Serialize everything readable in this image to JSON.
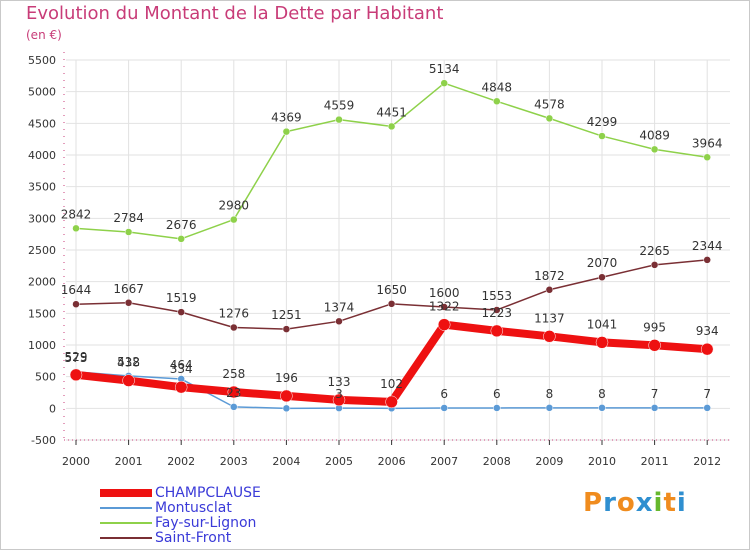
{
  "title": "Evolution du Montant de la Dette par Habitant",
  "subtitle": "(en €)",
  "logo": {
    "text": "Proxiti",
    "letters": [
      "P",
      "r",
      "o",
      "x",
      "i",
      "t",
      "i"
    ],
    "colors": [
      "#f08c1e",
      "#2f8fd0",
      "#f08c1e",
      "#2f8fd0",
      "#66b82d",
      "#f08c1e",
      "#2f8fd0"
    ]
  },
  "chart_data": {
    "type": "line",
    "title": "Evolution du Montant de la Dette par Habitant",
    "subtitle": "(en €)",
    "x": [
      "2000",
      "2001",
      "2002",
      "2003",
      "2004",
      "2005",
      "2006",
      "2007",
      "2008",
      "2009",
      "2010",
      "2011",
      "2012"
    ],
    "ylim": [
      -500,
      5500
    ],
    "yticks": [
      -500,
      0,
      500,
      1000,
      1500,
      2000,
      2500,
      3000,
      3500,
      4000,
      4500,
      5000,
      5500
    ],
    "grid": true,
    "legend_position": "bottom-left",
    "series": [
      {
        "name": "CHAMPCLAUSE",
        "color": "#ee1111",
        "values": [
          529,
          438,
          334,
          258,
          196,
          133,
          102,
          1322,
          1223,
          1137,
          1041,
          995,
          934
        ],
        "labels": [
          "529",
          "438",
          "334",
          "258",
          "196",
          "133",
          "102",
          "1322",
          "1223",
          "1137",
          "1041",
          "995",
          "934"
        ]
      },
      {
        "name": "Montusclat",
        "color": "#5b9ad6",
        "values": [
          575,
          512,
          464,
          23,
          0,
          3,
          0,
          6,
          6,
          8,
          8,
          7,
          7
        ],
        "labels": [
          "575",
          "512",
          "464",
          "23",
          "",
          "3",
          "",
          "6",
          "6",
          "8",
          "8",
          "7",
          "7"
        ]
      },
      {
        "name": "Fay-sur-Lignon",
        "color": "#8ed14a",
        "values": [
          2842,
          2784,
          2676,
          2980,
          4369,
          4559,
          4451,
          5134,
          4848,
          4578,
          4299,
          4089,
          3964
        ],
        "labels": [
          "2842",
          "2784",
          "2676",
          "2980",
          "4369",
          "4559",
          "4451",
          "5134",
          "4848",
          "4578",
          "4299",
          "4089",
          "3964"
        ]
      },
      {
        "name": "Saint-Front",
        "color": "#7a2f34",
        "values": [
          1644,
          1667,
          1519,
          1276,
          1251,
          1374,
          1650,
          1600,
          1553,
          1872,
          2070,
          2265,
          2344
        ],
        "labels": [
          "1644",
          "1667",
          "1519",
          "1276",
          "1251",
          "1374",
          "1650",
          "1600",
          "1553",
          "1872",
          "2070",
          "2265",
          "2344"
        ]
      }
    ]
  }
}
